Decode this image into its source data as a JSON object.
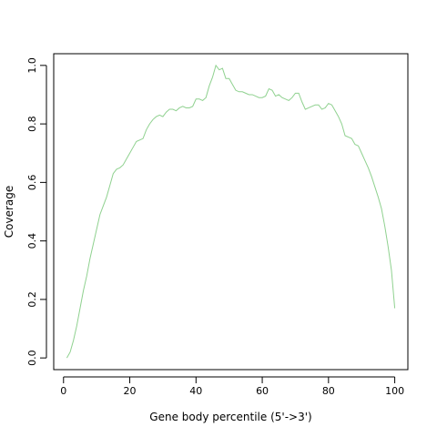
{
  "chart_data": {
    "type": "line",
    "title": "",
    "xlabel": "Gene body percentile (5'->3')",
    "ylabel": "Coverage",
    "xlim": [
      -2.96,
      103.96
    ],
    "ylim": [
      -0.04,
      1.04
    ],
    "x_ticks": [
      0,
      20,
      40,
      60,
      80,
      100
    ],
    "x_tick_labels": [
      "0",
      "20",
      "40",
      "60",
      "80",
      "100"
    ],
    "y_ticks": [
      0.0,
      0.2,
      0.4,
      0.6,
      0.8,
      1.0
    ],
    "y_tick_labels": [
      "0.0",
      "0.2",
      "0.4",
      "0.6",
      "0.8",
      "1.0"
    ],
    "grid": false,
    "line_color": "#8fd18f",
    "series": [
      {
        "name": "",
        "x": [
          1,
          2,
          3,
          4,
          5,
          6,
          7,
          8,
          9,
          10,
          11,
          12,
          13,
          14,
          15,
          16,
          17,
          18,
          19,
          20,
          21,
          22,
          23,
          24,
          25,
          26,
          27,
          28,
          29,
          30,
          31,
          32,
          33,
          34,
          35,
          36,
          37,
          38,
          39,
          40,
          41,
          42,
          43,
          44,
          45,
          46,
          47,
          48,
          49,
          50,
          51,
          52,
          53,
          54,
          55,
          56,
          57,
          58,
          59,
          60,
          61,
          62,
          63,
          64,
          65,
          66,
          67,
          68,
          69,
          70,
          71,
          72,
          73,
          74,
          75,
          76,
          77,
          78,
          79,
          80,
          81,
          82,
          83,
          84,
          85,
          86,
          87,
          88,
          89,
          90,
          91,
          92,
          93,
          94,
          95,
          96,
          97,
          98,
          99,
          100
        ],
        "y": [
          0.0,
          0.02,
          0.06,
          0.11,
          0.17,
          0.23,
          0.28,
          0.34,
          0.39,
          0.44,
          0.49,
          0.52,
          0.55,
          0.59,
          0.63,
          0.645,
          0.65,
          0.66,
          0.68,
          0.7,
          0.72,
          0.74,
          0.745,
          0.75,
          0.78,
          0.8,
          0.815,
          0.825,
          0.83,
          0.825,
          0.84,
          0.85,
          0.85,
          0.845,
          0.855,
          0.86,
          0.855,
          0.855,
          0.86,
          0.885,
          0.885,
          0.88,
          0.89,
          0.93,
          0.96,
          1.0,
          0.985,
          0.99,
          0.955,
          0.955,
          0.935,
          0.915,
          0.91,
          0.91,
          0.905,
          0.9,
          0.9,
          0.895,
          0.89,
          0.89,
          0.895,
          0.92,
          0.915,
          0.895,
          0.9,
          0.89,
          0.885,
          0.88,
          0.89,
          0.905,
          0.905,
          0.875,
          0.85,
          0.855,
          0.86,
          0.865,
          0.865,
          0.85,
          0.855,
          0.87,
          0.865,
          0.845,
          0.825,
          0.8,
          0.76,
          0.755,
          0.75,
          0.73,
          0.725,
          0.7,
          0.675,
          0.65,
          0.62,
          0.585,
          0.55,
          0.51,
          0.45,
          0.38,
          0.3,
          0.17
        ]
      }
    ]
  }
}
